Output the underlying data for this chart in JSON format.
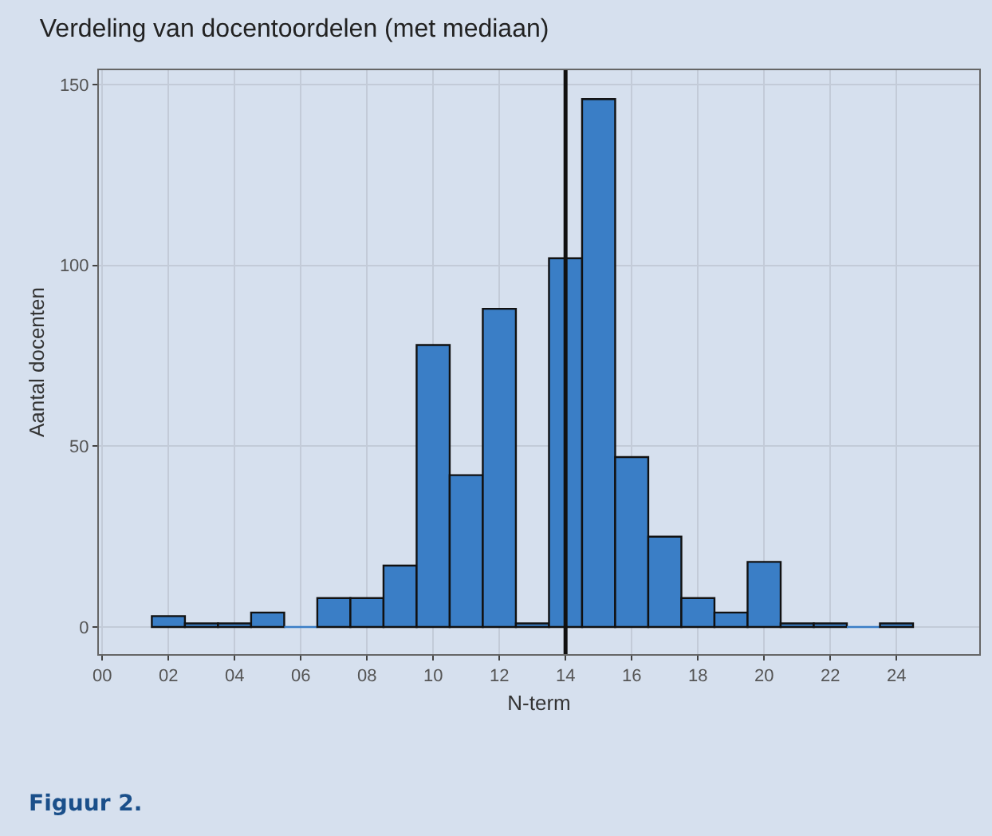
{
  "chart_data": {
    "type": "histogram",
    "title": "Verdeling van docentoordelen (met mediaan)",
    "xlabel": "N-term",
    "ylabel": "Aantal docenten",
    "bins": [
      1.5,
      2.5,
      3.5,
      4.5,
      5.5,
      6.5,
      7.5,
      8.5,
      9.5,
      10.5,
      11.5,
      12.5,
      13.5,
      14.5,
      15.5,
      16.5,
      17.5,
      18.5,
      19.5,
      20.5,
      21.5,
      22.5,
      23.5,
      24.5
    ],
    "values": [
      3,
      1,
      1,
      4,
      0,
      8,
      8,
      17,
      78,
      42,
      88,
      1,
      102,
      146,
      47,
      25,
      8,
      4,
      18,
      1,
      1,
      0,
      1
    ],
    "color": "#3a7ec6",
    "xlim": [
      -0.1,
      26.5
    ],
    "xticks": [
      {
        "value": 0,
        "label": "00"
      },
      {
        "value": 2,
        "label": "02"
      },
      {
        "value": 4,
        "label": "04"
      },
      {
        "value": 6,
        "label": "06"
      },
      {
        "value": 8,
        "label": "08"
      },
      10,
      12,
      14,
      16,
      18,
      20,
      22,
      24
    ],
    "ylim": [
      -7.5,
      154
    ],
    "yticks": [
      0,
      50,
      100,
      150
    ],
    "ref_lines": [
      {
        "axis": "x",
        "value": 14,
        "color": "#111111"
      }
    ],
    "grid": true,
    "annotations": [
      "Figuur 2."
    ]
  }
}
